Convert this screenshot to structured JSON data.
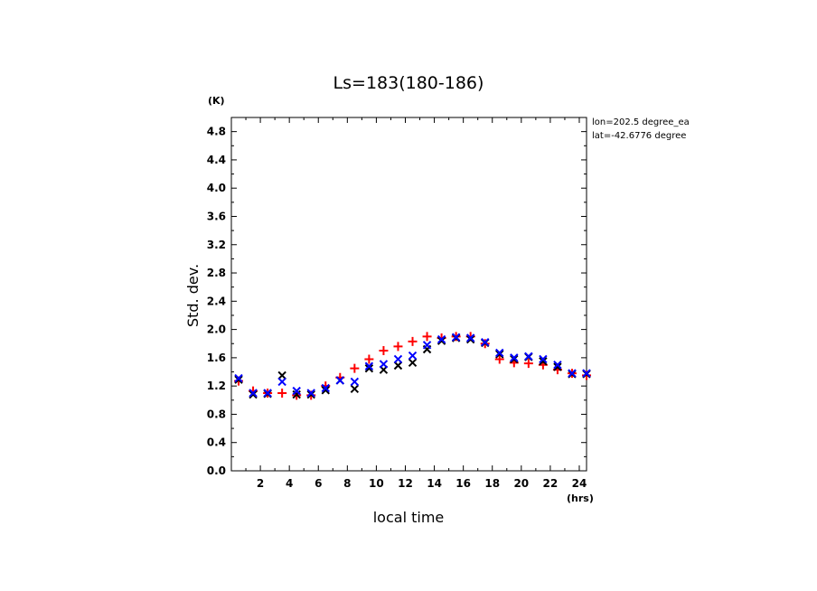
{
  "chart_data": {
    "type": "scatter",
    "title": "Ls=183(180-186)",
    "xlabel": "local time",
    "ylabel": "Std. dev.",
    "x_unit": "(hrs)",
    "y_unit": "(K)",
    "xlim": [
      0,
      24.5
    ],
    "ylim": [
      0,
      5.0
    ],
    "x_ticks": [
      2,
      4,
      6,
      8,
      10,
      12,
      14,
      16,
      18,
      20,
      22,
      24
    ],
    "x_tick_labels": [
      "2",
      "4",
      "6",
      "8",
      "10",
      "12",
      "14",
      "16",
      "18",
      "20",
      "22",
      "24"
    ],
    "y_ticks": [
      0.0,
      0.4,
      0.8,
      1.2,
      1.6,
      2.0,
      2.4,
      2.8,
      3.2,
      3.6,
      4.0,
      4.4,
      4.8
    ],
    "y_tick_labels": [
      "0.0",
      "0.4",
      "0.8",
      "1.2",
      "1.6",
      "2.0",
      "2.4",
      "2.8",
      "3.2",
      "3.6",
      "4.0",
      "4.4",
      "4.8"
    ],
    "annotations": [
      "lon=202.5 degree_ea",
      "lat=-42.6776 degree"
    ],
    "x": [
      0.5,
      1.5,
      2.5,
      3.5,
      4.5,
      5.5,
      6.5,
      7.5,
      8.5,
      9.5,
      10.5,
      11.5,
      12.5,
      13.5,
      14.5,
      15.5,
      16.5,
      17.5,
      18.5,
      19.5,
      20.5,
      21.5,
      22.5,
      23.5,
      24.5
    ],
    "series": [
      {
        "marker": "plus",
        "color": "#ff0000",
        "values": [
          1.27,
          1.13,
          1.1,
          1.1,
          1.07,
          1.07,
          1.2,
          1.32,
          1.45,
          1.58,
          1.7,
          1.76,
          1.83,
          1.9,
          1.88,
          1.9,
          1.9,
          1.8,
          1.58,
          1.53,
          1.52,
          1.5,
          1.43,
          1.38,
          1.35
        ]
      },
      {
        "marker": "x",
        "color": "#000000",
        "values": [
          1.29,
          1.08,
          1.09,
          1.35,
          1.08,
          1.08,
          1.14,
          1.28,
          1.16,
          1.45,
          1.43,
          1.49,
          1.53,
          1.72,
          1.84,
          1.88,
          1.86,
          1.81,
          1.65,
          1.58,
          1.61,
          1.55,
          1.47,
          1.37,
          1.37
        ]
      },
      {
        "marker": "x",
        "color": "#0000ff",
        "values": [
          1.31,
          1.1,
          1.1,
          1.26,
          1.13,
          1.1,
          1.17,
          1.28,
          1.26,
          1.48,
          1.51,
          1.58,
          1.63,
          1.78,
          1.86,
          1.89,
          1.88,
          1.82,
          1.67,
          1.6,
          1.62,
          1.58,
          1.5,
          1.38,
          1.38
        ]
      }
    ],
    "grid": false,
    "legend": "none"
  }
}
